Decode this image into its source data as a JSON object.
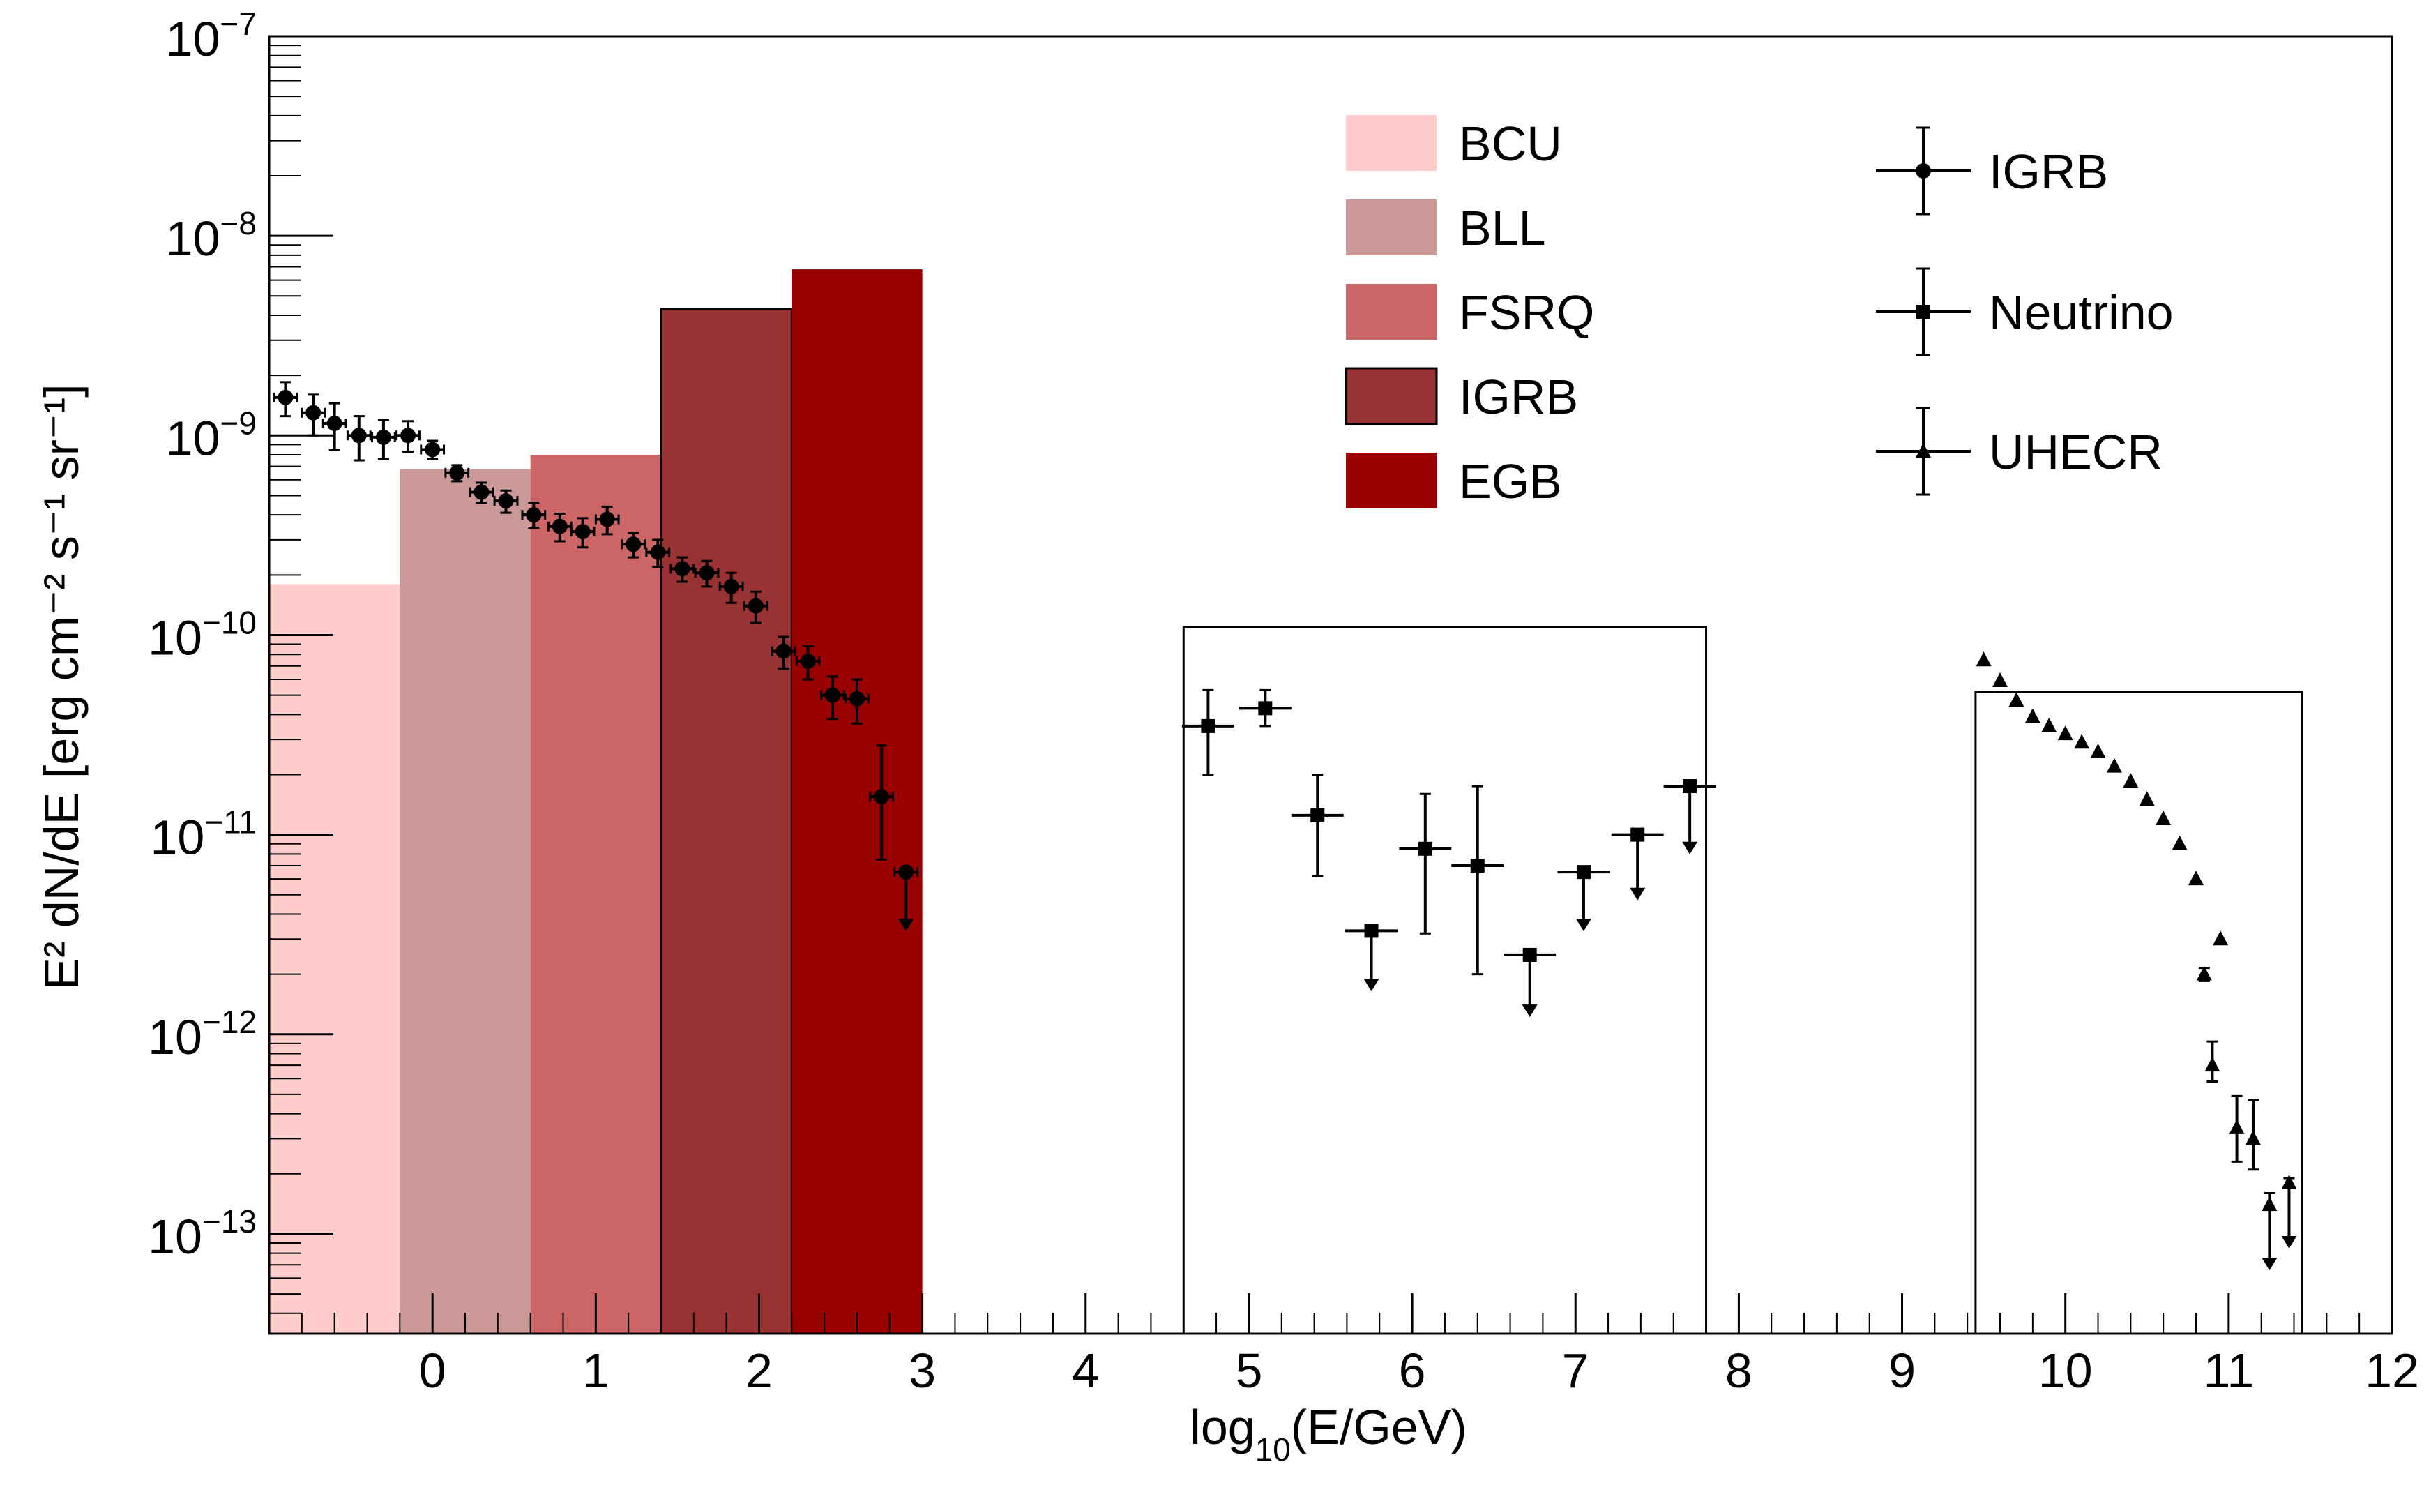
{
  "chart_data": {
    "type": "scatter",
    "xlabel": "log",
    "xlabel_sub": "10",
    "xlabel_tail": "(E/GeV)",
    "ylabel": "E² dN/dE [erg cm⁻² s⁻¹ sr⁻¹]",
    "xlim": [
      -1,
      12
    ],
    "ylim_log10": [
      -13.5,
      -7
    ],
    "yscale": "log",
    "x_ticks": [
      0,
      1,
      2,
      3,
      4,
      5,
      6,
      7,
      8,
      9,
      10,
      11,
      12
    ],
    "y_ticks": [
      {
        "exp": -7,
        "label": "10",
        "sup": "−7"
      },
      {
        "exp": -8,
        "label": "10",
        "sup": "−8"
      },
      {
        "exp": -9,
        "label": "10",
        "sup": "−9"
      },
      {
        "exp": -10,
        "label": "10",
        "sup": "−10"
      },
      {
        "exp": -11,
        "label": "10",
        "sup": "−11"
      },
      {
        "exp": -12,
        "label": "10",
        "sup": "−12"
      },
      {
        "exp": -13,
        "label": "10",
        "sup": "−13"
      }
    ],
    "bars": [
      {
        "name": "BCU",
        "x0": -1.0,
        "x1": -0.2,
        "value": 1.8e-10,
        "color": "#ffcccc",
        "outline": false
      },
      {
        "name": "BLL",
        "x0": -0.2,
        "x1": 0.6,
        "value": 6.8e-10,
        "color": "#cc9999",
        "outline": false
      },
      {
        "name": "FSRQ",
        "x0": 0.6,
        "x1": 1.4,
        "value": 8e-10,
        "color": "#cc6666",
        "outline": false
      },
      {
        "name": "IGRB",
        "x0": 1.4,
        "x1": 2.2,
        "value": 4.3e-09,
        "color": "#993333",
        "outline": true
      },
      {
        "name": "EGB",
        "x0": 2.2,
        "x1": 3.0,
        "value": 6.8e-09,
        "color": "#990000",
        "outline": false
      }
    ],
    "boxes": [
      {
        "name": "neutrino-range",
        "x0": 4.6,
        "x1": 7.8,
        "y_top": 1.1e-10
      },
      {
        "name": "uhecr-range",
        "x0": 9.45,
        "x1": 11.45,
        "y_top": 5.2e-11
      }
    ],
    "legend_bars": [
      {
        "label": "BCU",
        "color": "#ffcccc",
        "outline": false
      },
      {
        "label": "BLL",
        "color": "#cc9999",
        "outline": false
      },
      {
        "label": "FSRQ",
        "color": "#cc6666",
        "outline": false
      },
      {
        "label": "IGRB",
        "color": "#993333",
        "outline": true
      },
      {
        "label": "EGB",
        "color": "#990000",
        "outline": false
      }
    ],
    "legend_markers": [
      {
        "label": "IGRB",
        "marker": "circle"
      },
      {
        "label": "Neutrino",
        "marker": "square"
      },
      {
        "label": "UHECR",
        "marker": "triangle"
      }
    ],
    "series": [
      {
        "name": "IGRB",
        "marker": "circle",
        "points": [
          {
            "x": -0.9,
            "y": 1.55e-09,
            "xerr": 0.07,
            "ylo": 1.25e-09,
            "yhi": 1.85e-09
          },
          {
            "x": -0.73,
            "y": 1.3e-09,
            "xerr": 0.07,
            "ylo": 1e-09,
            "yhi": 1.6e-09
          },
          {
            "x": -0.6,
            "y": 1.15e-09,
            "xerr": 0.07,
            "ylo": 8.5e-10,
            "yhi": 1.45e-09
          },
          {
            "x": -0.45,
            "y": 1e-09,
            "xerr": 0.07,
            "ylo": 7.5e-10,
            "yhi": 1.25e-09
          },
          {
            "x": -0.3,
            "y": 9.8e-10,
            "xerr": 0.07,
            "ylo": 7.6e-10,
            "yhi": 1.2e-09
          },
          {
            "x": -0.15,
            "y": 1e-09,
            "xerr": 0.07,
            "ylo": 8.3e-10,
            "yhi": 1.18e-09
          },
          {
            "x": 0.0,
            "y": 8.5e-10,
            "xerr": 0.07,
            "ylo": 7.6e-10,
            "yhi": 9.4e-10
          },
          {
            "x": 0.15,
            "y": 6.5e-10,
            "xerr": 0.07,
            "ylo": 5.9e-10,
            "yhi": 7.1e-10
          },
          {
            "x": 0.3,
            "y": 5.2e-10,
            "xerr": 0.07,
            "ylo": 4.6e-10,
            "yhi": 5.8e-10
          },
          {
            "x": 0.45,
            "y": 4.7e-10,
            "xerr": 0.07,
            "ylo": 4.1e-10,
            "yhi": 5.3e-10
          },
          {
            "x": 0.62,
            "y": 4e-10,
            "xerr": 0.07,
            "ylo": 3.45e-10,
            "yhi": 4.6e-10
          },
          {
            "x": 0.78,
            "y": 3.5e-10,
            "xerr": 0.07,
            "ylo": 2.95e-10,
            "yhi": 4.05e-10
          },
          {
            "x": 0.92,
            "y": 3.3e-10,
            "xerr": 0.07,
            "ylo": 2.75e-10,
            "yhi": 3.85e-10
          },
          {
            "x": 1.07,
            "y": 3.8e-10,
            "xerr": 0.07,
            "ylo": 3.2e-10,
            "yhi": 4.4e-10
          },
          {
            "x": 1.23,
            "y": 2.85e-10,
            "xerr": 0.07,
            "ylo": 2.45e-10,
            "yhi": 3.25e-10
          },
          {
            "x": 1.38,
            "y": 2.6e-10,
            "xerr": 0.07,
            "ylo": 2.2e-10,
            "yhi": 3e-10
          },
          {
            "x": 1.53,
            "y": 2.15e-10,
            "xerr": 0.07,
            "ylo": 1.85e-10,
            "yhi": 2.45e-10
          },
          {
            "x": 1.68,
            "y": 2.05e-10,
            "xerr": 0.07,
            "ylo": 1.75e-10,
            "yhi": 2.35e-10
          },
          {
            "x": 1.83,
            "y": 1.75e-10,
            "xerr": 0.07,
            "ylo": 1.45e-10,
            "yhi": 2.05e-10
          },
          {
            "x": 1.98,
            "y": 1.4e-10,
            "xerr": 0.07,
            "ylo": 1.15e-10,
            "yhi": 1.65e-10
          },
          {
            "x": 2.15,
            "y": 8.3e-11,
            "xerr": 0.07,
            "ylo": 6.8e-11,
            "yhi": 9.8e-11
          },
          {
            "x": 2.3,
            "y": 7.4e-11,
            "xerr": 0.07,
            "ylo": 6e-11,
            "yhi": 8.8e-11
          },
          {
            "x": 2.45,
            "y": 5e-11,
            "xerr": 0.07,
            "ylo": 3.8e-11,
            "yhi": 6.2e-11
          },
          {
            "x": 2.6,
            "y": 4.8e-11,
            "xerr": 0.07,
            "ylo": 3.6e-11,
            "yhi": 6e-11
          },
          {
            "x": 2.75,
            "y": 1.55e-11,
            "xerr": 0.07,
            "ylo": 7.5e-12,
            "yhi": 2.8e-11
          },
          {
            "x": 2.9,
            "y": 6.5e-12,
            "xerr": 0.07,
            "ylo": 3.5e-12,
            "yhi": 6.5e-12,
            "upper_limit": true
          }
        ]
      },
      {
        "name": "Neutrino",
        "marker": "square",
        "points": [
          {
            "x": 4.75,
            "y": 3.5e-11,
            "xerr": 0.16,
            "ylo": 2e-11,
            "yhi": 5.3e-11
          },
          {
            "x": 5.1,
            "y": 4.3e-11,
            "xerr": 0.16,
            "ylo": 3.5e-11,
            "yhi": 5.3e-11
          },
          {
            "x": 5.42,
            "y": 1.25e-11,
            "xerr": 0.16,
            "ylo": 6.2e-12,
            "yhi": 2e-11
          },
          {
            "x": 5.75,
            "y": 3.3e-12,
            "xerr": 0.16,
            "ylo": 1.75e-12,
            "yhi": 3.3e-12,
            "upper_limit": true
          },
          {
            "x": 6.08,
            "y": 8.5e-12,
            "xerr": 0.16,
            "ylo": 3.2e-12,
            "yhi": 1.6e-11
          },
          {
            "x": 6.4,
            "y": 7e-12,
            "xerr": 0.16,
            "ylo": 2e-12,
            "yhi": 1.75e-11
          },
          {
            "x": 6.72,
            "y": 2.5e-12,
            "xerr": 0.16,
            "ylo": 1.3e-12,
            "yhi": 2.5e-12,
            "upper_limit": true
          },
          {
            "x": 7.05,
            "y": 6.5e-12,
            "xerr": 0.16,
            "ylo": 3.5e-12,
            "yhi": 6.5e-12,
            "upper_limit": true
          },
          {
            "x": 7.38,
            "y": 1e-11,
            "xerr": 0.16,
            "ylo": 5e-12,
            "yhi": 1e-11,
            "upper_limit": true
          },
          {
            "x": 7.7,
            "y": 1.75e-11,
            "xerr": 0.16,
            "ylo": 8.5e-12,
            "yhi": 1.75e-11,
            "upper_limit": true
          }
        ]
      },
      {
        "name": "UHECR",
        "marker": "triangle",
        "points": [
          {
            "x": 9.5,
            "y": 7.5e-11
          },
          {
            "x": 9.6,
            "y": 5.9e-11
          },
          {
            "x": 9.7,
            "y": 4.7e-11
          },
          {
            "x": 9.8,
            "y": 3.9e-11
          },
          {
            "x": 9.9,
            "y": 3.5e-11
          },
          {
            "x": 10.0,
            "y": 3.2e-11
          },
          {
            "x": 10.1,
            "y": 2.9e-11
          },
          {
            "x": 10.2,
            "y": 2.6e-11
          },
          {
            "x": 10.3,
            "y": 2.2e-11
          },
          {
            "x": 10.4,
            "y": 1.85e-11
          },
          {
            "x": 10.5,
            "y": 1.5e-11
          },
          {
            "x": 10.6,
            "y": 1.2e-11
          },
          {
            "x": 10.7,
            "y": 9e-12
          },
          {
            "x": 10.8,
            "y": 6e-12
          },
          {
            "x": 10.95,
            "y": 3e-12
          },
          {
            "x": 10.85,
            "y": 2e-12,
            "ylo": 1.85e-12,
            "yhi": 2.15e-12
          },
          {
            "x": 10.9,
            "y": 7e-13,
            "ylo": 5.8e-13,
            "yhi": 9.2e-13
          },
          {
            "x": 11.05,
            "y": 3.4e-13,
            "ylo": 2.3e-13,
            "yhi": 4.9e-13
          },
          {
            "x": 11.15,
            "y": 3e-13,
            "ylo": 2.1e-13,
            "yhi": 4.7e-13
          },
          {
            "x": 11.25,
            "y": 1.4e-13,
            "ylo": 7e-14,
            "yhi": 1.6e-13,
            "upper_limit": true
          },
          {
            "x": 11.37,
            "y": 1.8e-13,
            "ylo": 9e-14,
            "yhi": 1.9e-13,
            "upper_limit": true
          }
        ]
      }
    ]
  }
}
